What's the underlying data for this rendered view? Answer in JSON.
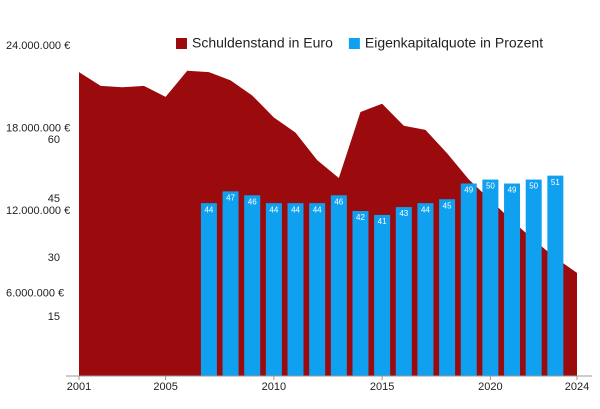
{
  "chart_data": {
    "type": "area-bar",
    "x": [
      2001,
      2002,
      2003,
      2004,
      2005,
      2006,
      2007,
      2008,
      2009,
      2010,
      2011,
      2012,
      2013,
      2014,
      2015,
      2016,
      2017,
      2018,
      2019,
      2020,
      2021,
      2022,
      2023,
      2024
    ],
    "xlim": [
      2001,
      2024
    ],
    "xticks": [
      2001,
      2005,
      2010,
      2015,
      2020,
      2024
    ],
    "ylim": [
      0,
      24000000
    ],
    "yticks": [
      {
        "value": 6000000,
        "label": "6.000.000 €"
      },
      {
        "value": 12000000,
        "label": "12.000.000 €"
      },
      {
        "value": 18000000,
        "label": "18.000.000 €"
      },
      {
        "value": 24000000,
        "label": "24.000.000 €"
      }
    ],
    "y2lim": [
      0,
      84
    ],
    "y2ticks": [
      15,
      30,
      45,
      60
    ],
    "series": [
      {
        "name": "Schuldenstand in Euro",
        "color": "#9b0a0d",
        "kind": "area",
        "values": [
          22100000,
          21100000,
          21000000,
          21100000,
          20300000,
          22200000,
          22100000,
          21500000,
          20400000,
          18800000,
          17700000,
          15700000,
          14400000,
          19200000,
          19800000,
          18200000,
          17900000,
          16200000,
          14300000,
          12800000,
          11300000,
          9900000,
          8600000,
          7500000
        ]
      },
      {
        "name": "Eigenkapitalquote in Prozent",
        "color": "#0fa0f0",
        "kind": "bar",
        "axis": "y2",
        "x": [
          2007,
          2008,
          2009,
          2010,
          2011,
          2012,
          2013,
          2014,
          2015,
          2016,
          2017,
          2018,
          2019,
          2020,
          2021,
          2022,
          2023
        ],
        "values": [
          44,
          47,
          46,
          44,
          44,
          44,
          46,
          42,
          41,
          43,
          44,
          45,
          49,
          50,
          49,
          50,
          51
        ]
      }
    ]
  }
}
